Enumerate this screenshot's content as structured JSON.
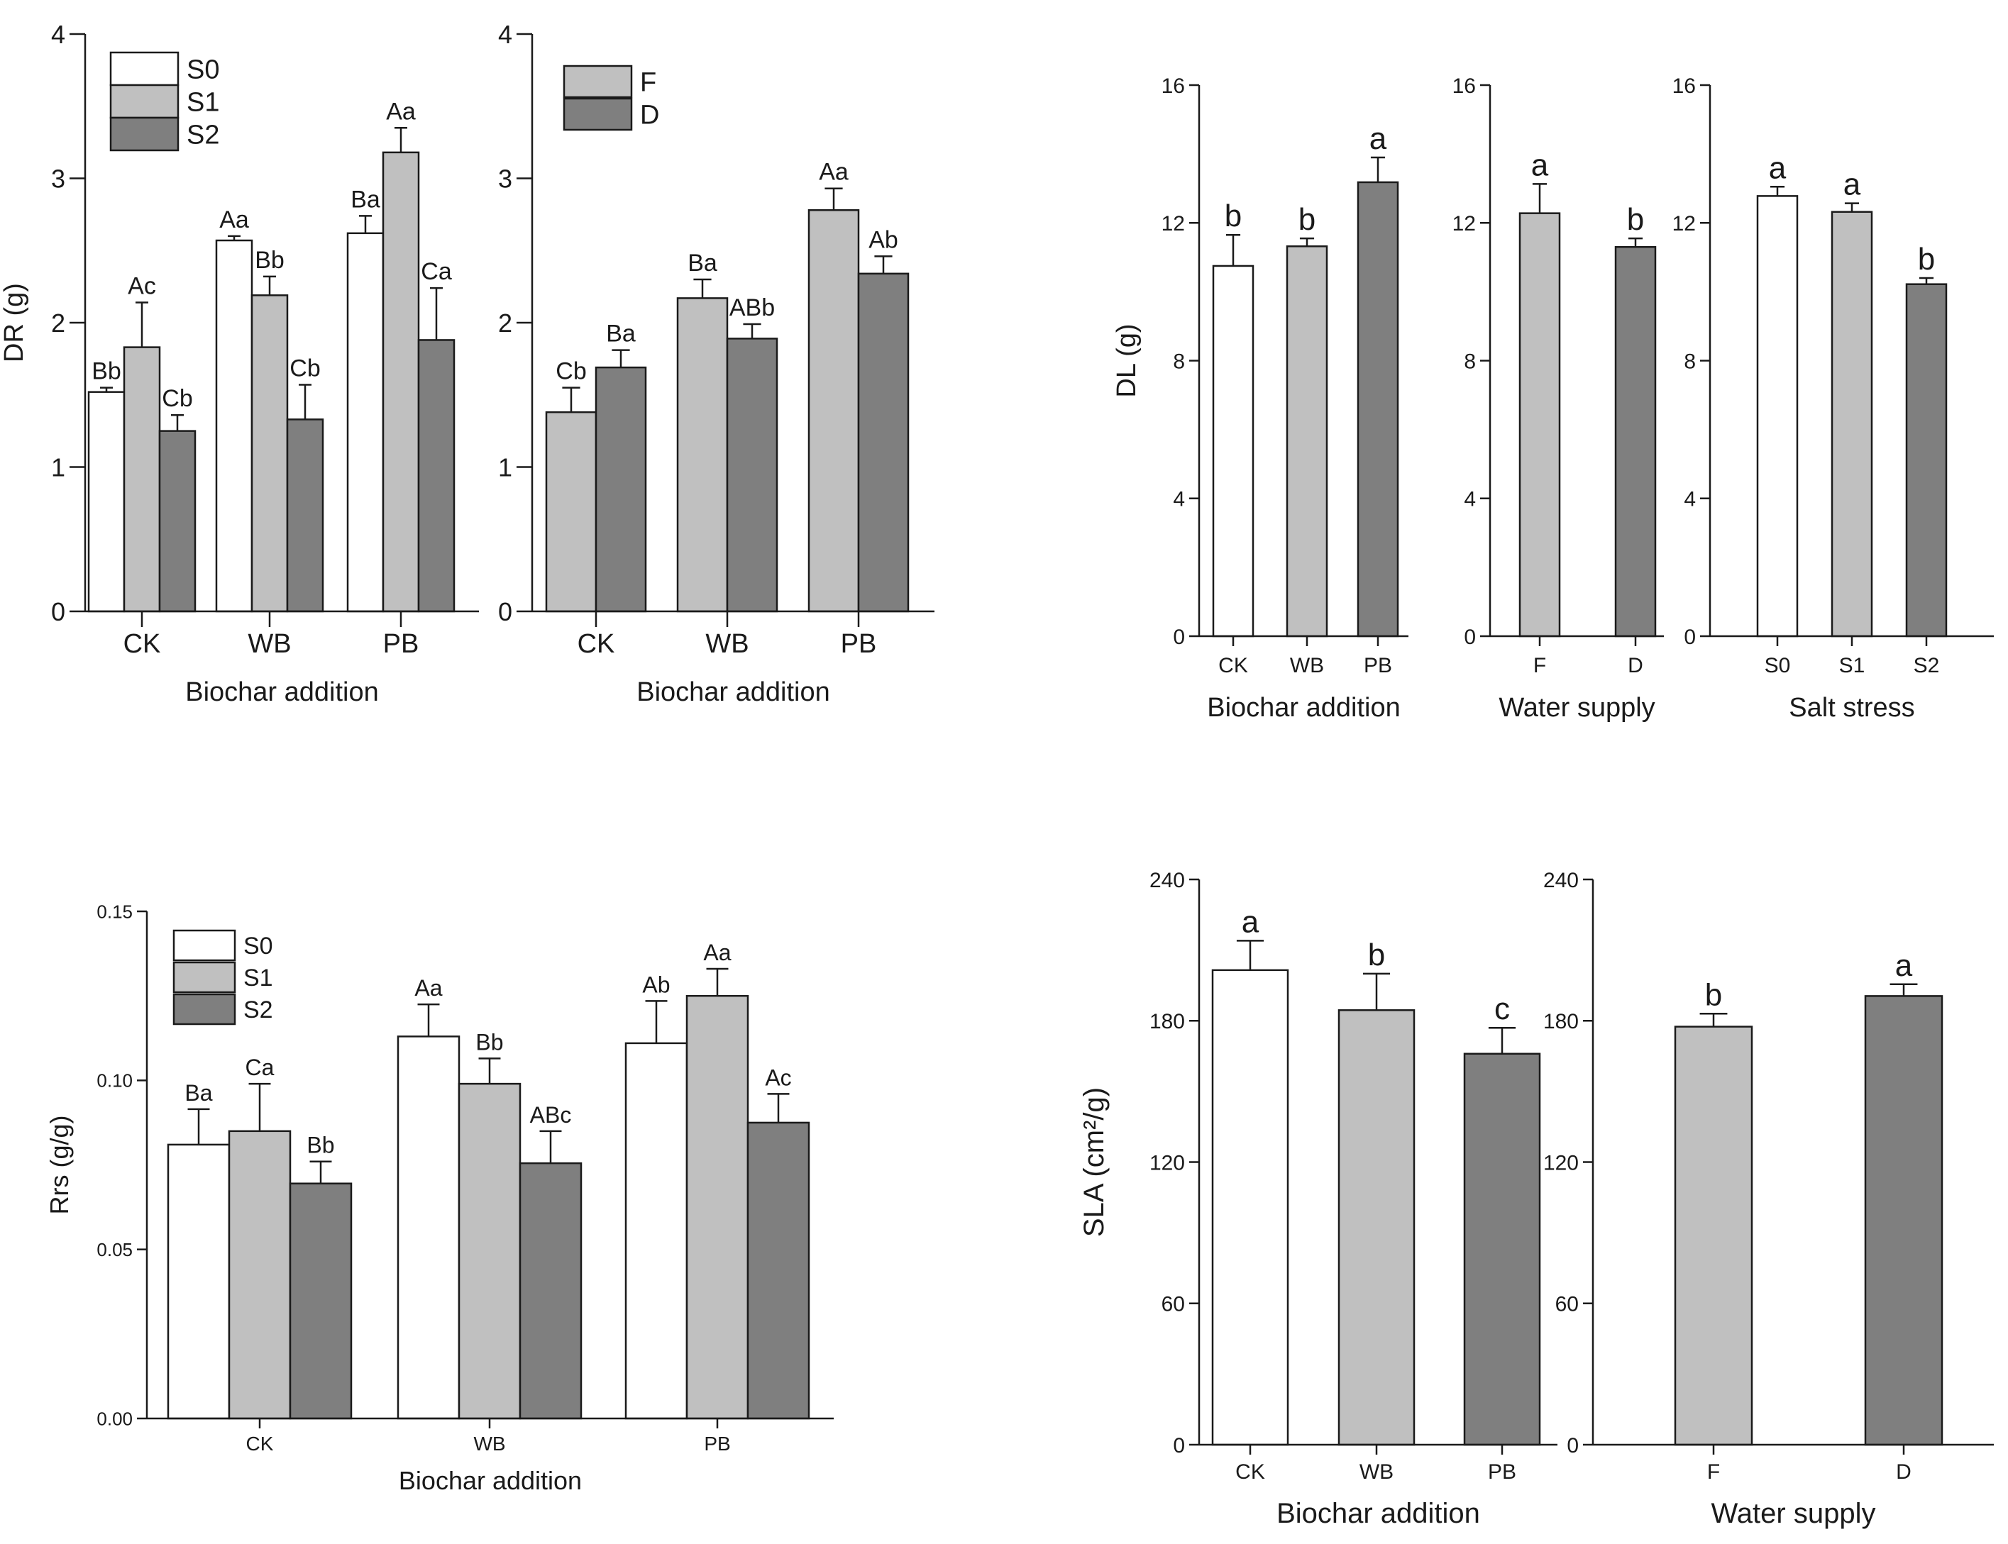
{
  "colors": {
    "white": "#ffffff",
    "light": "#c0c0c0",
    "dark": "#7f7f7f",
    "axis": "#1a1a1a"
  },
  "chart_data": [
    {
      "id": "dr-salt",
      "type": "bar",
      "ylabel": "DR (g)",
      "xlabel": "Biochar addition",
      "ylim": [
        0,
        4
      ],
      "yticks": [
        "0",
        "1",
        "2",
        "3",
        "4"
      ],
      "categories": [
        "CK",
        "WB",
        "PB"
      ],
      "legend": [
        "S0",
        "S1",
        "S2"
      ],
      "series": [
        {
          "name": "S0",
          "color": "white",
          "values": [
            1.52,
            2.57,
            2.62
          ],
          "errors": [
            0.03,
            0.03,
            0.12
          ],
          "labels": [
            "Bb",
            "Aa",
            "Ba"
          ]
        },
        {
          "name": "S1",
          "color": "light",
          "values": [
            1.83,
            2.19,
            3.18
          ],
          "errors": [
            0.31,
            0.13,
            0.17
          ],
          "labels": [
            "Ac",
            "Bb",
            "Aa"
          ]
        },
        {
          "name": "S2",
          "color": "dark",
          "values": [
            1.25,
            1.33,
            1.88
          ],
          "errors": [
            0.11,
            0.24,
            0.36
          ],
          "labels": [
            "Cb",
            "Cb",
            "Ca"
          ]
        }
      ]
    },
    {
      "id": "dr-water",
      "type": "bar",
      "ylabel": "",
      "xlabel": "Biochar addition",
      "ylim": [
        0,
        4
      ],
      "yticks": [
        "0",
        "1",
        "2",
        "3",
        "4"
      ],
      "categories": [
        "CK",
        "WB",
        "PB"
      ],
      "legend": [
        "F",
        "D"
      ],
      "series": [
        {
          "name": "F",
          "color": "light",
          "values": [
            1.38,
            2.17,
            2.78
          ],
          "errors": [
            0.17,
            0.13,
            0.15
          ],
          "labels": [
            "Cb",
            "Ba",
            "Aa"
          ]
        },
        {
          "name": "D",
          "color": "dark",
          "values": [
            1.69,
            1.89,
            2.34
          ],
          "errors": [
            0.12,
            0.1,
            0.12
          ],
          "labels": [
            "Ba",
            "ABb",
            "Ab"
          ]
        }
      ]
    },
    {
      "id": "dl-biochar",
      "type": "bar",
      "ylabel": "DL (g)",
      "xlabel": "Biochar addition",
      "ylim": [
        0,
        16
      ],
      "yticks": [
        "0",
        "4",
        "8",
        "12",
        "16"
      ],
      "categories": [
        "CK",
        "WB",
        "PB"
      ],
      "values": [
        10.75,
        11.32,
        13.18
      ],
      "errors": [
        0.9,
        0.23,
        0.72
      ],
      "colors": [
        "white",
        "light",
        "dark"
      ],
      "labels": [
        "b",
        "b",
        "a"
      ]
    },
    {
      "id": "dl-water",
      "type": "bar",
      "ylabel": "",
      "xlabel": "Water supply",
      "ylim": [
        0,
        16
      ],
      "yticks": [
        "0",
        "4",
        "8",
        "12",
        "16"
      ],
      "categories": [
        "F",
        "D"
      ],
      "values": [
        12.28,
        11.3
      ],
      "errors": [
        0.85,
        0.25
      ],
      "colors": [
        "light",
        "dark"
      ],
      "labels": [
        "a",
        "b"
      ]
    },
    {
      "id": "dl-salt",
      "type": "bar",
      "ylabel": "",
      "xlabel": "Salt stress",
      "ylim": [
        0,
        16
      ],
      "yticks": [
        "0",
        "4",
        "8",
        "12",
        "16"
      ],
      "categories": [
        "S0",
        "S1",
        "S2"
      ],
      "values": [
        12.78,
        12.32,
        10.22
      ],
      "errors": [
        0.27,
        0.25,
        0.18
      ],
      "colors": [
        "white",
        "light",
        "dark"
      ],
      "labels": [
        "a",
        "a",
        "b"
      ]
    },
    {
      "id": "rrs-salt",
      "type": "bar",
      "ylabel": "Rrs (g/g)",
      "xlabel": "Biochar addition",
      "ylim": [
        0,
        0.15
      ],
      "yticks": [
        "0.00",
        "0.05",
        "0.10",
        "0.15"
      ],
      "categories": [
        "CK",
        "WB",
        "PB"
      ],
      "legend": [
        "S0",
        "S1",
        "S2"
      ],
      "series": [
        {
          "name": "S0",
          "color": "white",
          "values": [
            0.081,
            0.113,
            0.111
          ],
          "errors": [
            0.0105,
            0.0095,
            0.0125
          ],
          "labels": [
            "Ba",
            "Aa",
            "Ab"
          ]
        },
        {
          "name": "S1",
          "color": "light",
          "values": [
            0.085,
            0.099,
            0.125
          ],
          "errors": [
            0.014,
            0.0075,
            0.008
          ],
          "labels": [
            "Ca",
            "Bb",
            "Aa"
          ]
        },
        {
          "name": "S2",
          "color": "dark",
          "values": [
            0.0695,
            0.0755,
            0.0875
          ],
          "errors": [
            0.0065,
            0.0095,
            0.0085
          ],
          "labels": [
            "Bb",
            "ABc",
            "Ac"
          ]
        }
      ]
    },
    {
      "id": "sla-biochar",
      "type": "bar",
      "ylabel": "SLA (cm²/g)",
      "xlabel": "Biochar addition",
      "ylim": [
        0,
        240
      ],
      "yticks": [
        "0",
        "60",
        "120",
        "180",
        "240"
      ],
      "categories": [
        "CK",
        "WB",
        "PB"
      ],
      "values": [
        201.5,
        184.5,
        166.0
      ],
      "errors": [
        12.5,
        15.5,
        11.0
      ],
      "colors": [
        "white",
        "light",
        "dark"
      ],
      "labels": [
        "a",
        "b",
        "c"
      ]
    },
    {
      "id": "sla-water",
      "type": "bar",
      "ylabel": "",
      "xlabel": "Water supply",
      "ylim": [
        0,
        240
      ],
      "yticks": [
        "0",
        "60",
        "120",
        "180",
        "240"
      ],
      "categories": [
        "F",
        "D"
      ],
      "values": [
        177.5,
        190.5
      ],
      "errors": [
        5.5,
        5.0
      ],
      "colors": [
        "light",
        "dark"
      ],
      "labels": [
        "b",
        "a"
      ]
    }
  ]
}
